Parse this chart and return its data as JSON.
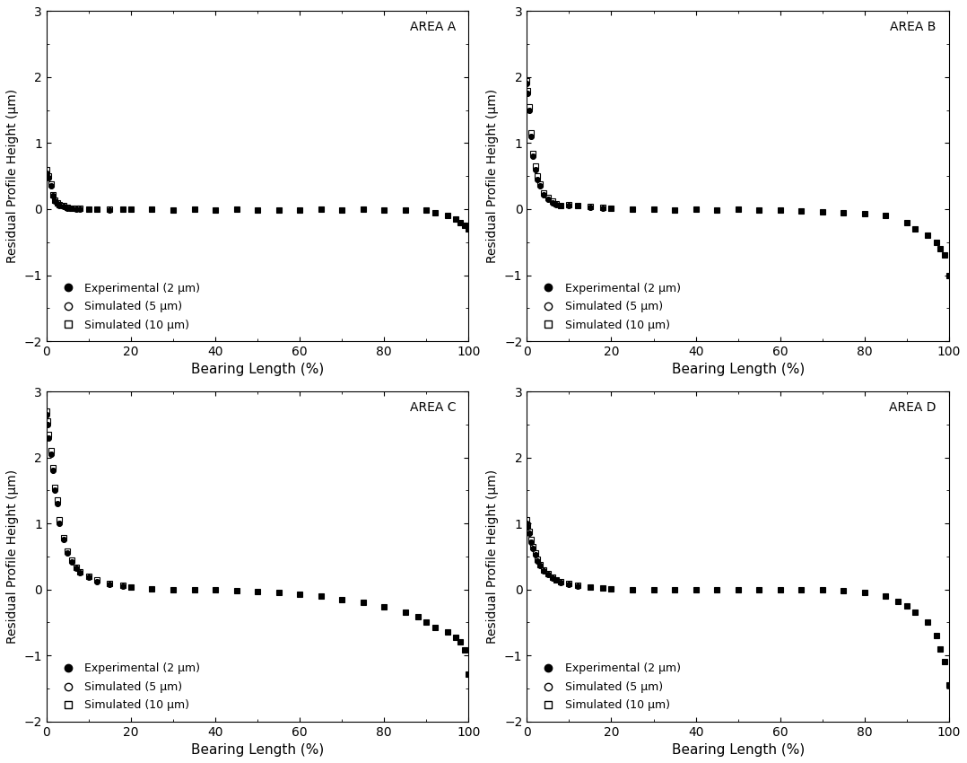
{
  "areas": [
    "AREA A",
    "AREA B",
    "AREA C",
    "AREA D"
  ],
  "ylabel": "Residual Profile Height (μm)",
  "xlabel": "Bearing Length (%)",
  "ylim": [
    -2,
    3
  ],
  "xlim": [
    0,
    100
  ],
  "yticks": [
    -2,
    -1,
    0,
    1,
    2,
    3
  ],
  "xticks": [
    0,
    20,
    40,
    60,
    80,
    100
  ],
  "legend_labels": [
    "Experimental (2 μm)",
    "Simulated (5 μm)",
    "Simulated (10 μm)"
  ],
  "background_color": "#ffffff",
  "area_A": {
    "exp_x": [
      0,
      0.5,
      1,
      1.5,
      2,
      2.5,
      3,
      4,
      5,
      6,
      7,
      8,
      10,
      12,
      15,
      18,
      20,
      25,
      30,
      35,
      40,
      45,
      50,
      55,
      60,
      65,
      70,
      75,
      80,
      85,
      90,
      92,
      95,
      97,
      98,
      99,
      100
    ],
    "exp_y": [
      0.55,
      0.47,
      0.35,
      0.2,
      0.12,
      0.08,
      0.06,
      0.04,
      0.02,
      0.01,
      0.0,
      0.0,
      0.0,
      0.0,
      -0.01,
      0.0,
      0.0,
      0.0,
      -0.01,
      0.0,
      -0.01,
      0.0,
      -0.01,
      -0.01,
      -0.01,
      0.0,
      -0.01,
      0.0,
      -0.01,
      -0.01,
      -0.01,
      -0.05,
      -0.1,
      -0.15,
      -0.2,
      -0.25,
      -0.3
    ],
    "sim5_x": [
      0,
      0.5,
      1,
      1.5,
      2,
      2.5,
      3,
      4,
      5,
      6,
      7,
      8,
      10,
      12,
      15,
      18,
      20,
      25,
      30,
      35,
      40,
      45,
      50,
      55,
      60,
      65,
      70,
      75,
      80,
      85,
      90,
      92,
      95,
      97,
      98,
      99,
      100
    ],
    "sim5_y": [
      0.55,
      0.47,
      0.35,
      0.2,
      0.12,
      0.08,
      0.06,
      0.04,
      0.02,
      0.01,
      0.0,
      0.0,
      0.0,
      0.0,
      -0.01,
      0.0,
      0.0,
      0.0,
      -0.01,
      0.0,
      -0.01,
      0.0,
      -0.01,
      -0.01,
      -0.01,
      0.0,
      -0.01,
      0.0,
      -0.01,
      -0.01,
      -0.01,
      -0.05,
      -0.1,
      -0.15,
      -0.2,
      -0.25,
      -0.3
    ],
    "sim10_x": [
      0,
      0.5,
      1,
      1.5,
      2,
      2.5,
      3,
      4,
      5,
      6,
      7,
      8,
      10,
      12,
      15,
      18,
      20,
      25,
      30,
      35,
      40,
      45,
      50,
      55,
      60,
      65,
      70,
      75,
      80,
      85,
      90,
      92,
      95,
      97,
      98,
      99,
      100
    ],
    "sim10_y": [
      0.6,
      0.5,
      0.38,
      0.22,
      0.13,
      0.09,
      0.07,
      0.05,
      0.03,
      0.02,
      0.01,
      0.01,
      0.0,
      0.0,
      0.0,
      0.0,
      0.0,
      0.0,
      -0.01,
      0.0,
      -0.01,
      0.0,
      -0.01,
      -0.01,
      -0.01,
      0.0,
      -0.01,
      0.0,
      -0.01,
      -0.01,
      -0.01,
      -0.05,
      -0.1,
      -0.15,
      -0.2,
      -0.25,
      -0.3
    ]
  },
  "area_B": {
    "exp_x": [
      0,
      0.2,
      0.5,
      1,
      1.5,
      2,
      2.5,
      3,
      4,
      5,
      6,
      7,
      8,
      10,
      12,
      15,
      18,
      20,
      25,
      30,
      35,
      40,
      45,
      50,
      55,
      60,
      65,
      70,
      75,
      80,
      85,
      90,
      92,
      95,
      97,
      98,
      99,
      100
    ],
    "exp_y": [
      1.9,
      1.75,
      1.5,
      1.1,
      0.8,
      0.6,
      0.45,
      0.35,
      0.22,
      0.15,
      0.1,
      0.07,
      0.05,
      0.06,
      0.05,
      0.03,
      0.02,
      0.01,
      0.0,
      0.0,
      -0.01,
      0.0,
      -0.01,
      0.0,
      -0.01,
      -0.02,
      -0.03,
      -0.04,
      -0.05,
      -0.07,
      -0.1,
      -0.2,
      -0.3,
      -0.4,
      -0.5,
      -0.6,
      -0.7,
      -1.0
    ],
    "sim5_x": [
      0,
      0.2,
      0.5,
      1,
      1.5,
      2,
      2.5,
      3,
      4,
      5,
      6,
      7,
      8,
      10,
      12,
      15,
      18,
      20,
      25,
      30,
      35,
      40,
      45,
      50,
      55,
      60,
      65,
      70,
      75,
      80,
      85,
      90,
      92,
      95,
      97,
      98,
      99,
      100
    ],
    "sim5_y": [
      1.9,
      1.75,
      1.5,
      1.1,
      0.8,
      0.6,
      0.45,
      0.35,
      0.22,
      0.15,
      0.1,
      0.07,
      0.05,
      0.06,
      0.05,
      0.03,
      0.02,
      0.01,
      0.0,
      0.0,
      -0.01,
      0.0,
      -0.01,
      0.0,
      -0.01,
      -0.02,
      -0.03,
      -0.04,
      -0.05,
      -0.07,
      -0.1,
      -0.2,
      -0.3,
      -0.4,
      -0.5,
      -0.6,
      -0.7,
      -1.0
    ],
    "sim10_x": [
      0,
      0.2,
      0.5,
      1,
      1.5,
      2,
      2.5,
      3,
      4,
      5,
      6,
      7,
      8,
      10,
      12,
      15,
      18,
      20,
      25,
      30,
      35,
      40,
      45,
      50,
      55,
      60,
      65,
      70,
      75,
      80,
      85,
      90,
      92,
      95,
      97,
      98,
      99,
      100
    ],
    "sim10_y": [
      1.95,
      1.8,
      1.55,
      1.15,
      0.85,
      0.65,
      0.5,
      0.38,
      0.25,
      0.17,
      0.12,
      0.08,
      0.06,
      0.07,
      0.06,
      0.04,
      0.03,
      0.01,
      0.0,
      0.0,
      -0.01,
      0.0,
      -0.01,
      0.0,
      -0.01,
      -0.02,
      -0.03,
      -0.04,
      -0.05,
      -0.07,
      -0.1,
      -0.2,
      -0.3,
      -0.4,
      -0.5,
      -0.6,
      -0.7,
      -1.0
    ]
  },
  "area_C": {
    "exp_x": [
      0,
      0.2,
      0.5,
      1,
      1.5,
      2,
      2.5,
      3,
      4,
      5,
      6,
      7,
      8,
      10,
      12,
      15,
      18,
      20,
      25,
      30,
      35,
      40,
      45,
      50,
      55,
      60,
      65,
      70,
      75,
      80,
      85,
      88,
      90,
      92,
      95,
      97,
      98,
      99,
      100
    ],
    "exp_y": [
      2.65,
      2.5,
      2.3,
      2.05,
      1.8,
      1.5,
      1.3,
      1.0,
      0.75,
      0.55,
      0.42,
      0.32,
      0.25,
      0.18,
      0.12,
      0.08,
      0.05,
      0.03,
      0.01,
      0.0,
      -0.01,
      -0.01,
      -0.02,
      -0.03,
      -0.05,
      -0.08,
      -0.1,
      -0.15,
      -0.2,
      -0.27,
      -0.35,
      -0.42,
      -0.5,
      -0.57,
      -0.65,
      -0.73,
      -0.8,
      -0.92,
      -1.28
    ],
    "sim5_x": [
      0,
      0.2,
      0.5,
      1,
      1.5,
      2,
      2.5,
      3,
      4,
      5,
      6,
      7,
      8,
      10,
      12,
      15,
      18,
      20,
      25,
      30,
      35,
      40,
      45,
      50,
      55,
      60,
      65,
      70,
      75,
      80,
      85,
      88,
      90,
      92,
      95,
      97,
      98,
      99,
      100
    ],
    "sim5_y": [
      2.65,
      2.5,
      2.3,
      2.05,
      1.8,
      1.5,
      1.3,
      1.0,
      0.75,
      0.55,
      0.42,
      0.32,
      0.25,
      0.18,
      0.12,
      0.08,
      0.05,
      0.03,
      0.01,
      0.0,
      -0.01,
      -0.01,
      -0.02,
      -0.03,
      -0.05,
      -0.08,
      -0.1,
      -0.15,
      -0.2,
      -0.27,
      -0.35,
      -0.42,
      -0.5,
      -0.57,
      -0.65,
      -0.73,
      -0.8,
      -0.92,
      -1.28
    ],
    "sim10_x": [
      0,
      0.2,
      0.5,
      1,
      1.5,
      2,
      2.5,
      3,
      4,
      5,
      6,
      7,
      8,
      10,
      12,
      15,
      18,
      20,
      25,
      30,
      35,
      40,
      45,
      50,
      55,
      60,
      65,
      70,
      75,
      80,
      85,
      88,
      90,
      92,
      95,
      97,
      98,
      99,
      100
    ],
    "sim10_y": [
      2.7,
      2.55,
      2.35,
      2.1,
      1.85,
      1.55,
      1.35,
      1.05,
      0.78,
      0.58,
      0.45,
      0.34,
      0.27,
      0.2,
      0.14,
      0.09,
      0.06,
      0.04,
      0.01,
      0.0,
      -0.01,
      -0.01,
      -0.02,
      -0.03,
      -0.05,
      -0.08,
      -0.1,
      -0.15,
      -0.2,
      -0.27,
      -0.35,
      -0.42,
      -0.5,
      -0.57,
      -0.65,
      -0.73,
      -0.8,
      -0.92,
      -1.28
    ]
  },
  "area_D": {
    "exp_x": [
      0,
      0.2,
      0.5,
      1,
      1.5,
      2,
      2.5,
      3,
      4,
      5,
      6,
      7,
      8,
      10,
      12,
      15,
      18,
      20,
      25,
      30,
      35,
      40,
      45,
      50,
      55,
      60,
      65,
      70,
      75,
      80,
      85,
      88,
      90,
      92,
      95,
      97,
      98,
      99,
      100
    ],
    "exp_y": [
      1.0,
      0.95,
      0.85,
      0.72,
      0.62,
      0.52,
      0.43,
      0.36,
      0.28,
      0.22,
      0.17,
      0.14,
      0.11,
      0.08,
      0.05,
      0.03,
      0.02,
      0.01,
      0.0,
      0.0,
      0.0,
      0.0,
      0.0,
      0.0,
      0.0,
      0.0,
      -0.01,
      -0.01,
      -0.02,
      -0.05,
      -0.1,
      -0.18,
      -0.25,
      -0.35,
      -0.5,
      -0.7,
      -0.9,
      -1.1,
      -1.45
    ],
    "sim5_x": [
      0,
      0.2,
      0.5,
      1,
      1.5,
      2,
      2.5,
      3,
      4,
      5,
      6,
      7,
      8,
      10,
      12,
      15,
      18,
      20,
      25,
      30,
      35,
      40,
      45,
      50,
      55,
      60,
      65,
      70,
      75,
      80,
      85,
      88,
      90,
      92,
      95,
      97,
      98,
      99,
      100
    ],
    "sim5_y": [
      1.0,
      0.95,
      0.85,
      0.72,
      0.62,
      0.52,
      0.43,
      0.36,
      0.28,
      0.22,
      0.17,
      0.14,
      0.11,
      0.08,
      0.05,
      0.03,
      0.02,
      0.01,
      0.0,
      0.0,
      0.0,
      0.0,
      0.0,
      0.0,
      0.0,
      0.0,
      -0.01,
      -0.01,
      -0.02,
      -0.05,
      -0.1,
      -0.18,
      -0.25,
      -0.35,
      -0.5,
      -0.7,
      -0.9,
      -1.1,
      -1.45
    ],
    "sim10_x": [
      0,
      0.2,
      0.5,
      1,
      1.5,
      2,
      2.5,
      3,
      4,
      5,
      6,
      7,
      8,
      10,
      12,
      15,
      18,
      20,
      25,
      30,
      35,
      40,
      45,
      50,
      55,
      60,
      65,
      70,
      75,
      80,
      85,
      88,
      90,
      92,
      95,
      97,
      98,
      99,
      100
    ],
    "sim10_y": [
      1.05,
      0.98,
      0.88,
      0.75,
      0.65,
      0.55,
      0.46,
      0.38,
      0.3,
      0.24,
      0.19,
      0.15,
      0.12,
      0.09,
      0.06,
      0.04,
      0.02,
      0.01,
      0.0,
      0.0,
      0.0,
      0.0,
      0.0,
      0.0,
      0.0,
      0.0,
      -0.01,
      -0.01,
      -0.02,
      -0.05,
      -0.1,
      -0.18,
      -0.25,
      -0.35,
      -0.5,
      -0.7,
      -0.9,
      -1.1,
      -1.45
    ]
  }
}
